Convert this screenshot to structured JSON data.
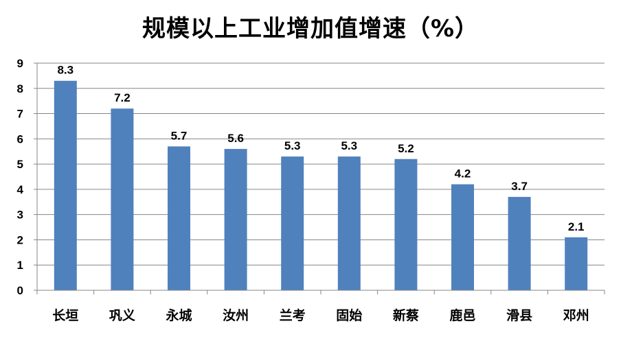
{
  "chart_data": {
    "type": "bar",
    "title": "规模以上工业增加值增速（%）",
    "categories": [
      "长垣",
      "巩义",
      "永城",
      "汝州",
      "兰考",
      "固始",
      "新蔡",
      "鹿邑",
      "滑县",
      "邓州"
    ],
    "series": [
      {
        "values": [
          8.3,
          7.2,
          5.7,
          5.6,
          5.3,
          5.3,
          5.2,
          4.2,
          3.7,
          2.1
        ]
      }
    ],
    "data_labels": [
      "8.3",
      "7.2",
      "5.7",
      "5.6",
      "5.3",
      "5.3",
      "5.2",
      "4.2",
      "3.7",
      "2.1"
    ],
    "y_ticks": [
      "0",
      "1",
      "2",
      "3",
      "4",
      "5",
      "6",
      "7",
      "8",
      "9"
    ],
    "ylim": [
      0,
      9
    ],
    "grid": true,
    "legend": "none",
    "colors": {
      "bar": "#4f81bd",
      "grid": "#868686",
      "axis": "#868686"
    }
  }
}
